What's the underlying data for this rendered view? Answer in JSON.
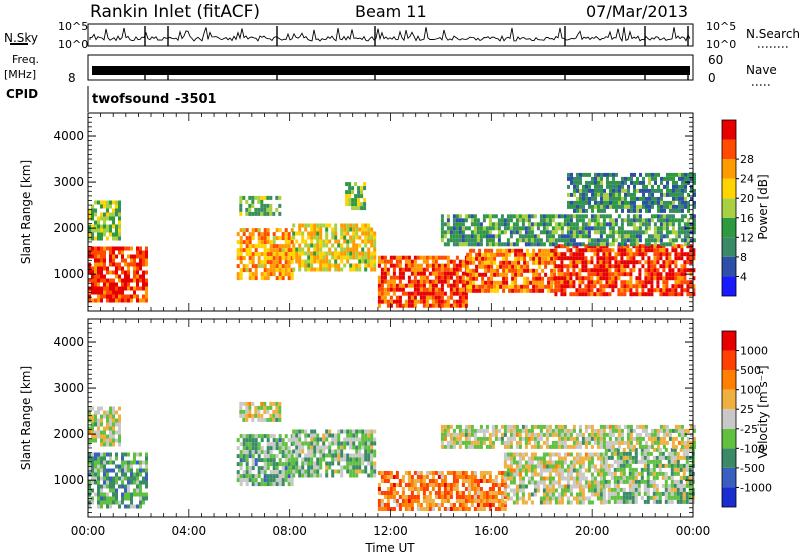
{
  "header": {
    "station": "Rankin Inlet (fitACF)",
    "beam": "Beam 11",
    "date": "07/Mar/2013"
  },
  "noise_panel": {
    "left_label": "N.Sky",
    "right_label": "N.Search",
    "y_ticks_left": [
      "10^5",
      "10^0"
    ],
    "y_ticks_right": [
      "10^5",
      "10^0"
    ]
  },
  "freq_panel": {
    "left_label_1": "Freq.",
    "left_label_2": "[MHz]",
    "left_tick": "8",
    "right_label": "Nave",
    "right_ticks": [
      "60",
      "0"
    ]
  },
  "cpid": {
    "label": "CPID",
    "program": "twofsound",
    "id": "-3501"
  },
  "colors": {
    "power": [
      "#1a1aff",
      "#2e4fa8",
      "#3a8a68",
      "#2e9a40",
      "#a8d040",
      "#ffd400",
      "#ff9a00",
      "#ff4a00",
      "#e60000"
    ],
    "velocity": [
      "#1a2ed0",
      "#3a5fc0",
      "#3a8a68",
      "#60c040",
      "#c8c8c8",
      "#f0b040",
      "#ff8000",
      "#ff4000",
      "#e60000"
    ]
  },
  "chart_data": [
    {
      "type": "heatmap",
      "panel": "power",
      "ylabel": "Slant Range [km]",
      "y_ticks": [
        "1000",
        "2000",
        "3000",
        "4000"
      ],
      "ylim": [
        200,
        4500
      ],
      "xlim": [
        0,
        24
      ],
      "colorbar": {
        "label": "Power [dB]",
        "ticks": [
          "4",
          "8",
          "12",
          "16",
          "20",
          "24",
          "28"
        ],
        "range": [
          0,
          32
        ]
      },
      "regions": [
        {
          "t0": 0.0,
          "t1": 2.3,
          "r0": 450,
          "r1": 1600,
          "level": 0.88
        },
        {
          "t0": 0.0,
          "t1": 1.2,
          "r0": 1800,
          "r1": 2600,
          "level": 0.45
        },
        {
          "t0": 5.9,
          "t1": 8.1,
          "r0": 900,
          "r1": 2000,
          "level": 0.72
        },
        {
          "t0": 6.0,
          "t1": 7.6,
          "r0": 2300,
          "r1": 2700,
          "level": 0.4
        },
        {
          "t0": 8.1,
          "t1": 11.4,
          "r0": 1100,
          "r1": 2100,
          "level": 0.6
        },
        {
          "t0": 10.2,
          "t1": 11.0,
          "r0": 2400,
          "r1": 3000,
          "level": 0.45
        },
        {
          "t0": 11.5,
          "t1": 15.0,
          "r0": 350,
          "r1": 1400,
          "level": 0.85
        },
        {
          "t0": 15.0,
          "t1": 18.5,
          "r0": 600,
          "r1": 1550,
          "level": 0.8
        },
        {
          "t0": 18.5,
          "t1": 24.0,
          "r0": 550,
          "r1": 1650,
          "level": 0.9
        },
        {
          "t0": 14.0,
          "t1": 24.0,
          "r0": 1650,
          "r1": 2300,
          "level": 0.35
        },
        {
          "t0": 19.0,
          "t1": 24.0,
          "r0": 2400,
          "r1": 3200,
          "level": 0.3
        }
      ]
    },
    {
      "type": "heatmap",
      "panel": "velocity",
      "ylabel": "Slant Range [km]",
      "xlabel": "Time UT",
      "y_ticks": [
        "1000",
        "2000",
        "3000",
        "4000"
      ],
      "x_ticks": [
        "00:00",
        "04:00",
        "08:00",
        "12:00",
        "16:00",
        "20:00",
        "00:00"
      ],
      "ylim": [
        200,
        4500
      ],
      "xlim": [
        0,
        24
      ],
      "colorbar": {
        "label": "Velocity [m s⁻¹]",
        "ticks": [
          "1000",
          "500",
          "100",
          "25",
          "-25",
          "-100",
          "-500",
          "-1000"
        ]
      },
      "regions": [
        {
          "t0": 0.0,
          "t1": 2.3,
          "r0": 450,
          "r1": 1600,
          "level": 0.35
        },
        {
          "t0": 0.0,
          "t1": 1.2,
          "r0": 1800,
          "r1": 2600,
          "level": 0.5
        },
        {
          "t0": 5.9,
          "t1": 8.1,
          "r0": 900,
          "r1": 2000,
          "level": 0.38
        },
        {
          "t0": 6.0,
          "t1": 7.6,
          "r0": 2300,
          "r1": 2700,
          "level": 0.5
        },
        {
          "t0": 8.1,
          "t1": 11.4,
          "r0": 1100,
          "r1": 2100,
          "level": 0.4
        },
        {
          "t0": 11.5,
          "t1": 16.5,
          "r0": 350,
          "r1": 1200,
          "level": 0.72
        },
        {
          "t0": 16.5,
          "t1": 20.5,
          "r0": 500,
          "r1": 1600,
          "level": 0.5
        },
        {
          "t0": 20.5,
          "t1": 24.0,
          "r0": 550,
          "r1": 1700,
          "level": 0.42
        },
        {
          "t0": 14.0,
          "t1": 24.0,
          "r0": 1750,
          "r1": 2200,
          "level": 0.5
        }
      ]
    }
  ]
}
